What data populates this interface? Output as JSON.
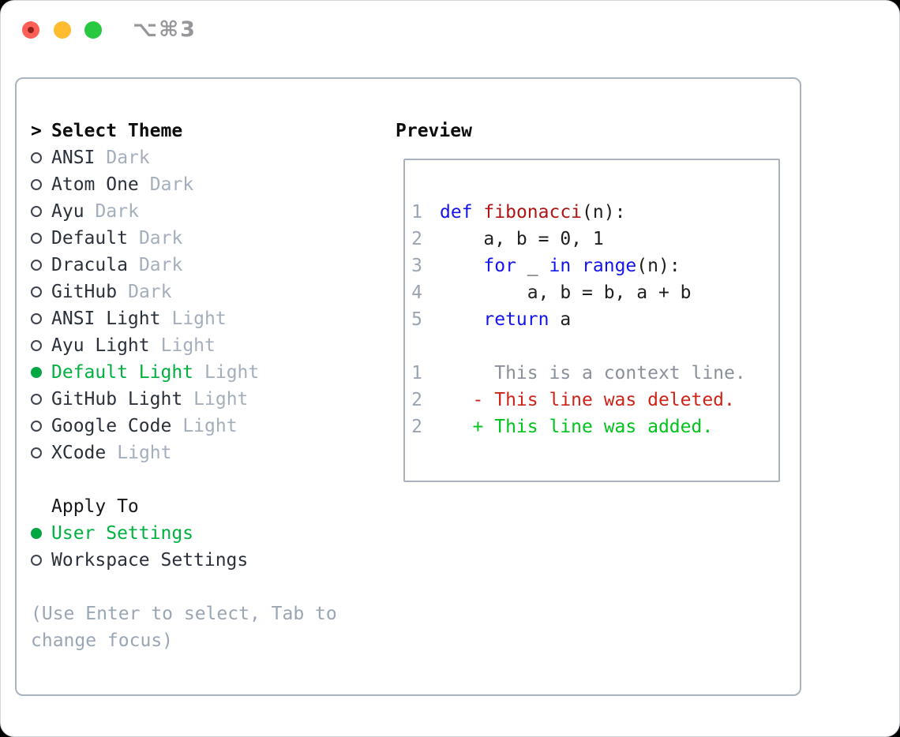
{
  "titlebar": {
    "shortcut": "⌥⌘3"
  },
  "theme_list": {
    "caret": ">",
    "heading": "Select Theme",
    "items": [
      {
        "name": "ANSI",
        "variant": "Dark",
        "selected": false
      },
      {
        "name": "Atom One",
        "variant": "Dark",
        "selected": false
      },
      {
        "name": "Ayu",
        "variant": "Dark",
        "selected": false
      },
      {
        "name": "Default",
        "variant": "Dark",
        "selected": false
      },
      {
        "name": "Dracula",
        "variant": "Dark",
        "selected": false
      },
      {
        "name": "GitHub",
        "variant": "Dark",
        "selected": false
      },
      {
        "name": "ANSI Light",
        "variant": "Light",
        "selected": false
      },
      {
        "name": "Ayu Light",
        "variant": "Light",
        "selected": false
      },
      {
        "name": "Default Light",
        "variant": "Light",
        "selected": true
      },
      {
        "name": "GitHub Light",
        "variant": "Light",
        "selected": false
      },
      {
        "name": "Google Code",
        "variant": "Light",
        "selected": false
      },
      {
        "name": "XCode",
        "variant": "Light",
        "selected": false
      }
    ]
  },
  "apply_to": {
    "heading": "Apply To",
    "options": [
      {
        "label": "User Settings",
        "selected": true
      },
      {
        "label": "Workspace Settings",
        "selected": false
      }
    ]
  },
  "hint": {
    "line1": "(Use Enter to select, Tab to",
    "line2": "change focus)"
  },
  "preview": {
    "heading": "Preview",
    "code_lines": [
      {
        "num": "1",
        "tokens": [
          {
            "t": "def",
            "c": "kw"
          },
          {
            "t": " ",
            "c": "pl"
          },
          {
            "t": "fibonacci",
            "c": "fn"
          },
          {
            "t": "(n):",
            "c": "pl"
          }
        ]
      },
      {
        "num": "2",
        "tokens": [
          {
            "t": "    a, b = 0, 1",
            "c": "pl"
          }
        ]
      },
      {
        "num": "3",
        "tokens": [
          {
            "t": "    ",
            "c": "pl"
          },
          {
            "t": "for",
            "c": "kw"
          },
          {
            "t": " _ ",
            "c": "pl"
          },
          {
            "t": "in",
            "c": "kw"
          },
          {
            "t": " ",
            "c": "pl"
          },
          {
            "t": "range",
            "c": "kw"
          },
          {
            "t": "(n):",
            "c": "pl"
          }
        ]
      },
      {
        "num": "4",
        "tokens": [
          {
            "t": "        a, b = b, a + b",
            "c": "pl"
          }
        ]
      },
      {
        "num": "5",
        "tokens": [
          {
            "t": "    ",
            "c": "pl"
          },
          {
            "t": "return",
            "c": "kw"
          },
          {
            "t": " a",
            "c": "pl"
          }
        ]
      },
      {
        "num": "",
        "tokens": []
      },
      {
        "num": "1",
        "tokens": [
          {
            "t": "     This is a context line.",
            "c": "ctx"
          }
        ]
      },
      {
        "num": "2",
        "tokens": [
          {
            "t": "   - This line was deleted.",
            "c": "del"
          }
        ]
      },
      {
        "num": "2",
        "tokens": [
          {
            "t": "   + This line was added.",
            "c": "add"
          }
        ]
      }
    ]
  },
  "colors": {
    "accent_green": "#00b140",
    "radio_green": "#00a843",
    "ring": "#3e4450",
    "name": "#2b313b",
    "muted": "#a4aebc",
    "hint": "#9aa6b4",
    "heading": "#0d0d0d",
    "border": "#a9b2bf",
    "kw": "#1414ee",
    "fn": "#b01515",
    "code": "#1f1f1f",
    "linenum": "#9aa4b2",
    "ctx": "#8a9099",
    "del": "#cc2418",
    "addc": "#00c41c",
    "traffic_red": "#ff5f57",
    "traffic_red_dot": "#8e221b",
    "traffic_yellow": "#febc2e",
    "traffic_green": "#28c840"
  }
}
